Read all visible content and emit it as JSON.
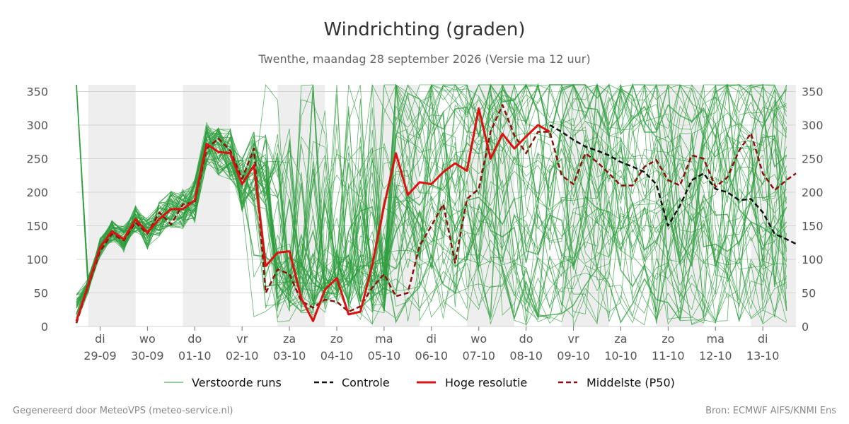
{
  "chart_data": {
    "type": "line",
    "title": "Windrichting (graden)",
    "subtitle": "Twenthe, maandag 28 september 2026 (Versie ma 12 uur)",
    "xlabel": "",
    "ylabel": "",
    "xlim": [
      0,
      15.2
    ],
    "ylim": [
      0,
      360
    ],
    "y_ticks": [
      0,
      50,
      100,
      150,
      200,
      250,
      300,
      350
    ],
    "x_ticks": [
      {
        "x": 0.5,
        "day": "di",
        "date": "29-09"
      },
      {
        "x": 1.5,
        "day": "wo",
        "date": "30-09"
      },
      {
        "x": 2.5,
        "day": "do",
        "date": "01-10"
      },
      {
        "x": 3.5,
        "day": "vr",
        "date": "02-10"
      },
      {
        "x": 4.5,
        "day": "za",
        "date": "03-10"
      },
      {
        "x": 5.5,
        "day": "zo",
        "date": "04-10"
      },
      {
        "x": 6.5,
        "day": "ma",
        "date": "05-10"
      },
      {
        "x": 7.5,
        "day": "di",
        "date": "06-10"
      },
      {
        "x": 8.5,
        "day": "wo",
        "date": "07-10"
      },
      {
        "x": 9.5,
        "day": "do",
        "date": "08-10"
      },
      {
        "x": 10.5,
        "day": "vr",
        "date": "09-10"
      },
      {
        "x": 11.5,
        "day": "za",
        "date": "10-10"
      },
      {
        "x": 12.5,
        "day": "zo",
        "date": "11-10"
      },
      {
        "x": 13.5,
        "day": "ma",
        "date": "12-10"
      },
      {
        "x": 14.5,
        "day": "di",
        "date": "13-10"
      }
    ],
    "shaded_days": [
      [
        0.25,
        1.25
      ],
      [
        2.25,
        3.25
      ],
      [
        4.25,
        5.25
      ],
      [
        6.25,
        7.25
      ],
      [
        8.25,
        9.25
      ],
      [
        10.25,
        11.25
      ],
      [
        12.25,
        13.25
      ],
      [
        14.25,
        15.2
      ]
    ],
    "grid": true,
    "legend_position": "bottom",
    "series": [
      {
        "name": "Hoge resolutie",
        "color": "#dd1111",
        "style": "solid",
        "x": [
          0,
          0.25,
          0.5,
          0.75,
          1.0,
          1.25,
          1.5,
          1.75,
          2.0,
          2.25,
          2.5,
          2.75,
          3.0,
          3.25,
          3.5,
          3.75,
          4.0,
          4.25,
          4.5,
          4.75,
          5.0,
          5.25,
          5.5,
          5.75,
          6.0,
          6.25,
          6.5,
          6.75,
          7.0,
          7.25,
          7.5,
          7.75,
          8.0,
          8.25,
          8.5,
          8.75,
          9.0,
          9.25,
          9.5,
          9.75,
          10.0
        ],
        "y": [
          8,
          62,
          118,
          142,
          130,
          160,
          140,
          160,
          175,
          175,
          188,
          272,
          260,
          258,
          212,
          240,
          90,
          110,
          112,
          42,
          8,
          55,
          72,
          18,
          22,
          92,
          180,
          258,
          196,
          215,
          212,
          230,
          243,
          232,
          325,
          250,
          287,
          265,
          283,
          300,
          290
        ]
      },
      {
        "name": "Controle",
        "color": "#111111",
        "style": "dashed",
        "x": [
          10.0,
          10.25,
          10.5,
          10.75,
          11.0,
          11.25,
          11.5,
          11.75,
          12.0,
          12.25,
          12.5,
          12.75,
          13.0,
          13.25,
          13.5,
          13.75,
          14.0,
          14.25,
          14.5,
          14.75,
          15.0,
          15.2
        ],
        "y": [
          300,
          290,
          278,
          268,
          262,
          255,
          245,
          238,
          230,
          212,
          150,
          180,
          218,
          228,
          205,
          200,
          188,
          190,
          170,
          138,
          130,
          123
        ]
      },
      {
        "name": "Middelste (P50)",
        "color": "#8b1010",
        "style": "dashed",
        "x": [
          0,
          0.25,
          0.5,
          0.75,
          1.0,
          1.25,
          1.5,
          1.75,
          2.0,
          2.25,
          2.5,
          2.75,
          3.0,
          3.25,
          3.5,
          3.75,
          4.0,
          4.25,
          4.5,
          4.75,
          5.0,
          5.25,
          5.5,
          5.75,
          6.0,
          6.25,
          6.5,
          6.75,
          7.0,
          7.25,
          7.5,
          7.75,
          8.0,
          8.25,
          8.5,
          8.75,
          9.0,
          9.25,
          9.5,
          9.75,
          10.0,
          10.25,
          10.5,
          10.75,
          11.0,
          11.25,
          11.5,
          11.75,
          12.0,
          12.25,
          12.5,
          12.75,
          13.0,
          13.25,
          13.5,
          13.75,
          14.0,
          14.25,
          14.5,
          14.75,
          15.0,
          15.2
        ],
        "y": [
          5,
          60,
          112,
          138,
          128,
          155,
          138,
          170,
          152,
          182,
          185,
          265,
          280,
          262,
          220,
          265,
          50,
          85,
          78,
          38,
          28,
          40,
          37,
          22,
          30,
          58,
          78,
          45,
          50,
          120,
          150,
          182,
          95,
          190,
          205,
          290,
          330,
          285,
          258,
          290,
          290,
          225,
          212,
          258,
          245,
          228,
          210,
          210,
          238,
          248,
          218,
          210,
          255,
          250,
          208,
          222,
          262,
          288,
          228,
          203,
          218,
          228
        ]
      }
    ],
    "ensemble": {
      "name": "Verstoorde runs",
      "color": "#2e9e3e"
    }
  },
  "footer": {
    "left": "Gegenereerd door MeteoVPS (meteo-service.nl)",
    "right": "Bron: ECMWF AIFS/KNMI Ens"
  }
}
